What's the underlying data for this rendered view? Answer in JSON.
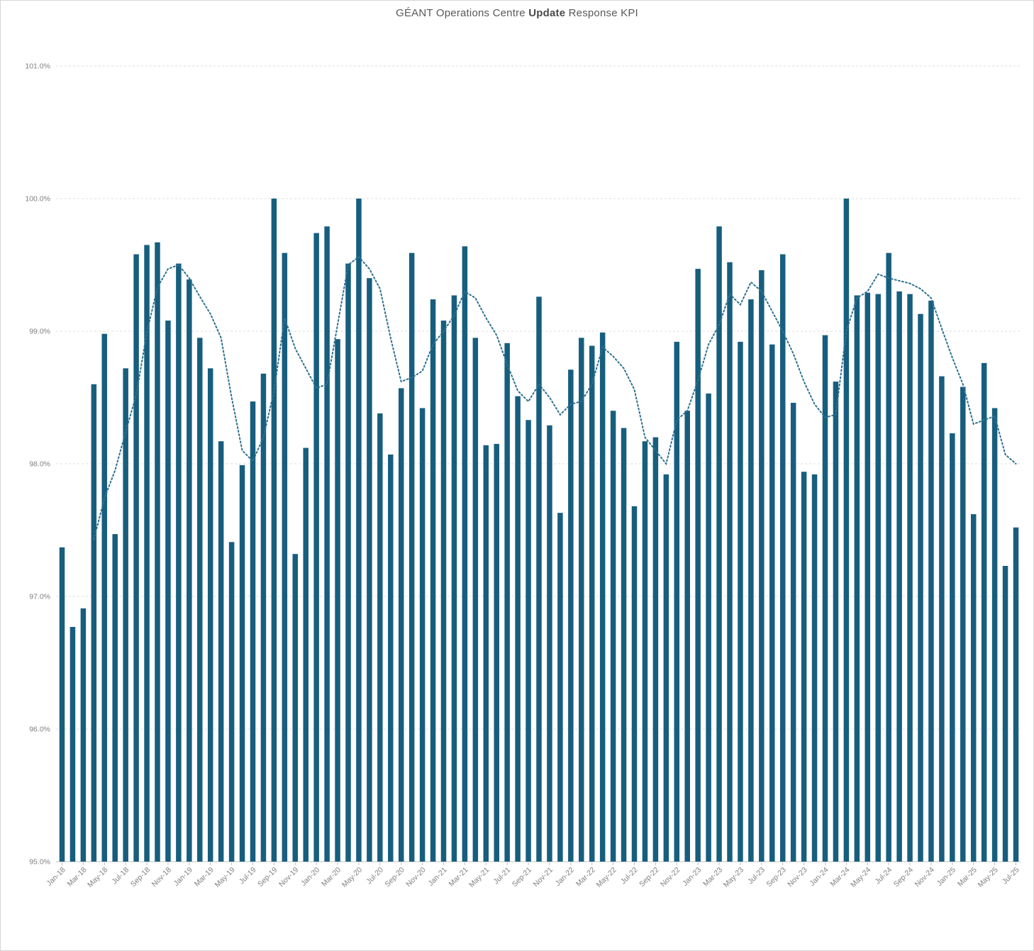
{
  "title": {
    "prefix": "GÉANT Operations Centre ",
    "bold": "Update",
    "suffix": " Response KPI"
  },
  "chart_data": {
    "type": "bar",
    "title": "GÉANT Operations Centre Update Response KPI",
    "unit": "%",
    "ylim": [
      95.0,
      101.0
    ],
    "grid": true,
    "legend": "none",
    "bar_color": "#175e7e",
    "trend_color": "#2d7190",
    "gridline_color": "#dcdcdc",
    "axis_color": "#bfbfbf",
    "label_color": "#808080",
    "y_ticks": [
      95,
      96,
      97,
      98,
      99,
      100,
      101
    ],
    "y_tick_labels": [
      "95.0%",
      "96.0%",
      "97.0%",
      "98.0%",
      "99.0%",
      "100.0%",
      "101.0%"
    ],
    "x_label_every": 2,
    "categories": [
      "Jan-18",
      "Feb-18",
      "Mar-18",
      "Apr-18",
      "May-18",
      "Jun-18",
      "Jul-18",
      "Aug-18",
      "Sep-18",
      "Oct-18",
      "Nov-18",
      "Dec-18",
      "Jan-19",
      "Feb-19",
      "Mar-19",
      "Apr-19",
      "May-19",
      "Jun-19",
      "Jul-19",
      "Aug-19",
      "Sep-19",
      "Oct-19",
      "Nov-19",
      "Dec-19",
      "Jan-20",
      "Feb-20",
      "Mar-20",
      "Apr-20",
      "May-20",
      "Jun-20",
      "Jul-20",
      "Aug-20",
      "Sep-20",
      "Oct-20",
      "Nov-20",
      "Dec-20",
      "Jan-21",
      "Feb-21",
      "Mar-21",
      "Apr-21",
      "May-21",
      "Jun-21",
      "Jul-21",
      "Aug-21",
      "Sep-21",
      "Oct-21",
      "Nov-21",
      "Dec-21",
      "Jan-22",
      "Feb-22",
      "Mar-22",
      "Apr-22",
      "May-22",
      "Jun-22",
      "Jul-22",
      "Aug-22",
      "Sep-22",
      "Oct-22",
      "Nov-22",
      "Dec-22",
      "Jan-23",
      "Feb-23",
      "Mar-23",
      "Apr-23",
      "May-23",
      "Jun-23",
      "Jul-23",
      "Aug-23",
      "Sep-23",
      "Oct-23",
      "Nov-23",
      "Dec-23",
      "Jan-24",
      "Feb-24",
      "Mar-24",
      "Apr-24",
      "May-24",
      "Jun-24",
      "Jul-24",
      "Aug-24",
      "Sep-24",
      "Oct-24",
      "Nov-24",
      "Dec-24",
      "Jan-25",
      "Feb-25",
      "Mar-25",
      "Apr-25",
      "May-25",
      "Jun-25",
      "Jul-25"
    ],
    "series": [
      {
        "name": "Monthly update response",
        "type": "bar",
        "values": [
          97.37,
          96.77,
          96.91,
          98.6,
          98.98,
          97.47,
          98.72,
          99.58,
          99.65,
          99.67,
          99.08,
          99.51,
          99.39,
          98.95,
          98.72,
          98.17,
          97.41,
          97.99,
          98.47,
          98.68,
          100.0,
          99.59,
          97.32,
          98.12,
          99.74,
          99.79,
          98.94,
          99.51,
          100.0,
          99.4,
          98.38,
          98.07,
          98.57,
          99.59,
          98.42,
          99.24,
          99.08,
          99.27,
          99.64,
          98.95,
          98.14,
          98.15,
          98.91,
          98.51,
          98.33,
          99.26,
          98.29,
          97.63,
          98.71,
          98.95,
          98.89,
          98.99,
          98.4,
          98.27,
          97.68,
          98.17,
          98.2,
          97.92,
          98.92,
          98.4,
          99.47,
          98.53,
          99.79,
          99.52,
          98.92,
          99.24,
          99.46,
          98.9,
          99.58,
          98.46,
          97.94,
          97.92,
          98.97,
          98.62,
          100.0,
          99.27,
          99.29,
          99.28,
          99.59,
          99.3,
          99.28,
          99.13,
          99.23,
          98.66,
          98.23,
          98.58,
          97.62,
          98.76,
          98.42,
          97.23,
          97.52
        ]
      },
      {
        "name": "Smoothed trend",
        "type": "dotted-line",
        "values": [
          null,
          null,
          null,
          97.43,
          97.74,
          97.95,
          98.24,
          98.52,
          98.99,
          99.33,
          99.47,
          99.5,
          99.4,
          99.26,
          99.13,
          98.95,
          98.5,
          98.1,
          98.02,
          98.2,
          98.55,
          99.1,
          98.87,
          98.72,
          98.57,
          98.6,
          99.05,
          99.5,
          99.56,
          99.47,
          99.32,
          98.95,
          98.62,
          98.65,
          98.7,
          98.9,
          99.0,
          99.12,
          99.3,
          99.25,
          99.1,
          98.97,
          98.75,
          98.55,
          98.47,
          98.6,
          98.5,
          98.37,
          98.45,
          98.47,
          98.6,
          98.88,
          98.81,
          98.72,
          98.56,
          98.2,
          98.1,
          98.0,
          98.33,
          98.4,
          98.63,
          98.9,
          99.05,
          99.28,
          99.2,
          99.37,
          99.3,
          99.15,
          99.0,
          98.83,
          98.62,
          98.45,
          98.35,
          98.37,
          99.0,
          99.25,
          99.3,
          99.43,
          99.4,
          99.38,
          99.36,
          99.32,
          99.25,
          99.02,
          98.8,
          98.6,
          98.3,
          98.33,
          98.36,
          98.07,
          98.0
        ]
      }
    ]
  }
}
